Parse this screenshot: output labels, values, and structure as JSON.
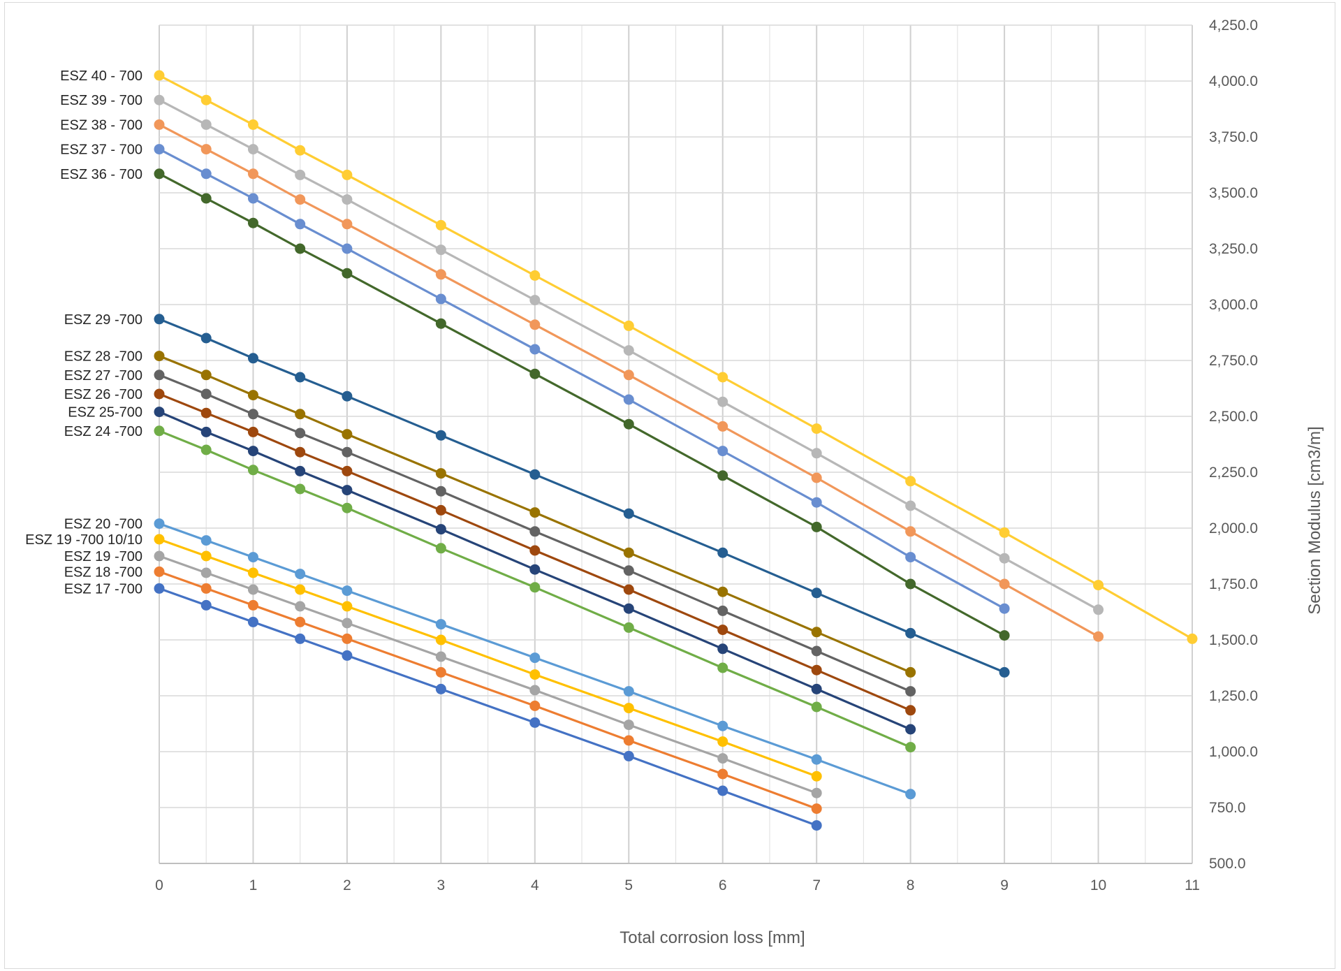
{
  "chart_data": {
    "type": "line",
    "title": "",
    "xlabel": "Total corrosion loss [mm]",
    "ylabel": "Section Modulus [cm3/m]",
    "xlim": [
      0,
      11
    ],
    "ylim": [
      500,
      4250
    ],
    "x_ticks": [
      "0",
      "1",
      "2",
      "3",
      "4",
      "5",
      "6",
      "7",
      "8",
      "9",
      "10",
      "11"
    ],
    "y_ticks": [
      "500.0",
      "750.0",
      "1,000.0",
      "1,250.0",
      "1,500.0",
      "1,750.0",
      "2,000.0",
      "2,250.0",
      "2,500.0",
      "2,750.0",
      "3,000.0",
      "3,250.0",
      "3,500.0",
      "3,750.0",
      "4,000.0",
      "4,250.0"
    ],
    "y_axis_side": "right",
    "grid": true,
    "legend": "series names printed at left edge beside first point",
    "series": [
      {
        "name": "ESZ 17 -700",
        "color": "#4472C4",
        "x": [
          0,
          0.5,
          1,
          1.5,
          2,
          3,
          4,
          5,
          6,
          7
        ],
        "y": [
          1730,
          1655,
          1580,
          1505,
          1430,
          1280,
          1130,
          980,
          825,
          670
        ]
      },
      {
        "name": "ESZ 18 -700",
        "color": "#ED7D31",
        "x": [
          0,
          0.5,
          1,
          1.5,
          2,
          3,
          4,
          5,
          6,
          7
        ],
        "y": [
          1805,
          1730,
          1655,
          1580,
          1505,
          1355,
          1205,
          1050,
          900,
          745
        ]
      },
      {
        "name": "ESZ 19 -700",
        "color": "#A5A5A5",
        "x": [
          0,
          0.5,
          1,
          1.5,
          2,
          3,
          4,
          5,
          6,
          7
        ],
        "y": [
          1875,
          1800,
          1725,
          1650,
          1575,
          1425,
          1275,
          1120,
          970,
          815
        ]
      },
      {
        "name": "ESZ 19 -700 10/10",
        "color": "#FFC000",
        "x": [
          0,
          0.5,
          1,
          1.5,
          2,
          3,
          4,
          5,
          6,
          7
        ],
        "y": [
          1950,
          1875,
          1800,
          1725,
          1650,
          1500,
          1345,
          1195,
          1045,
          890
        ]
      },
      {
        "name": "ESZ 20 -700",
        "color": "#5B9BD5",
        "x": [
          0,
          0.5,
          1,
          1.5,
          2,
          3,
          4,
          5,
          6,
          7,
          8
        ],
        "y": [
          2020,
          1945,
          1870,
          1795,
          1720,
          1570,
          1420,
          1270,
          1115,
          965,
          810
        ]
      },
      {
        "name": "ESZ 24 -700",
        "color": "#70AD47",
        "x": [
          0,
          0.5,
          1,
          1.5,
          2,
          3,
          4,
          5,
          6,
          7,
          8
        ],
        "y": [
          2435,
          2350,
          2260,
          2175,
          2090,
          1910,
          1735,
          1555,
          1375,
          1200,
          1020
        ]
      },
      {
        "name": "ESZ 25-700",
        "color": "#264478",
        "x": [
          0,
          0.5,
          1,
          1.5,
          2,
          3,
          4,
          5,
          6,
          7,
          8
        ],
        "y": [
          2520,
          2430,
          2345,
          2255,
          2170,
          1995,
          1815,
          1640,
          1460,
          1280,
          1100
        ]
      },
      {
        "name": "ESZ 26 -700",
        "color": "#9E480E",
        "x": [
          0,
          0.5,
          1,
          1.5,
          2,
          3,
          4,
          5,
          6,
          7,
          8
        ],
        "y": [
          2600,
          2515,
          2430,
          2340,
          2255,
          2080,
          1900,
          1725,
          1545,
          1365,
          1185
        ]
      },
      {
        "name": "ESZ 27 -700",
        "color": "#636363",
        "x": [
          0,
          0.5,
          1,
          1.5,
          2,
          3,
          4,
          5,
          6,
          7,
          8
        ],
        "y": [
          2685,
          2600,
          2510,
          2425,
          2340,
          2165,
          1985,
          1810,
          1630,
          1450,
          1270
        ]
      },
      {
        "name": "ESZ 28 -700",
        "color": "#997300",
        "x": [
          0,
          0.5,
          1,
          1.5,
          2,
          3,
          4,
          5,
          6,
          7,
          8
        ],
        "y": [
          2770,
          2685,
          2595,
          2510,
          2420,
          2245,
          2070,
          1890,
          1715,
          1535,
          1355
        ]
      },
      {
        "name": "ESZ 29 -700",
        "color": "#255E91",
        "x": [
          0,
          0.5,
          1,
          1.5,
          2,
          3,
          4,
          5,
          6,
          7,
          8,
          9
        ],
        "y": [
          2935,
          2850,
          2760,
          2675,
          2590,
          2415,
          2240,
          2065,
          1890,
          1710,
          1530,
          1355
        ]
      },
      {
        "name": "ESZ 36 - 700",
        "color": "#43682B",
        "x": [
          0,
          0.5,
          1,
          1.5,
          2,
          3,
          4,
          5,
          6,
          7,
          8,
          9
        ],
        "y": [
          3585,
          3475,
          3365,
          3250,
          3140,
          2915,
          2690,
          2465,
          2235,
          2005,
          1750,
          1520
        ]
      },
      {
        "name": "ESZ 37 - 700",
        "color": "#698ED0",
        "x": [
          0,
          0.5,
          1,
          1.5,
          2,
          3,
          4,
          5,
          6,
          7,
          8,
          9
        ],
        "y": [
          3695,
          3585,
          3475,
          3360,
          3250,
          3025,
          2800,
          2575,
          2345,
          2115,
          1870,
          1640
        ]
      },
      {
        "name": "ESZ 38 - 700",
        "color": "#F1975A",
        "x": [
          0,
          0.5,
          1,
          1.5,
          2,
          3,
          4,
          5,
          6,
          7,
          8,
          9,
          10
        ],
        "y": [
          3805,
          3695,
          3585,
          3470,
          3360,
          3135,
          2910,
          2685,
          2455,
          2225,
          1985,
          1750,
          1515
        ]
      },
      {
        "name": "ESZ 39 - 700",
        "color": "#B7B7B7",
        "x": [
          0,
          0.5,
          1,
          1.5,
          2,
          3,
          4,
          5,
          6,
          7,
          8,
          9,
          10
        ],
        "y": [
          3915,
          3805,
          3695,
          3580,
          3470,
          3245,
          3020,
          2795,
          2565,
          2335,
          2100,
          1865,
          1635
        ]
      },
      {
        "name": "ESZ 40 - 700",
        "color": "#FFCD33",
        "x": [
          0,
          0.5,
          1,
          1.5,
          2,
          3,
          4,
          5,
          6,
          7,
          8,
          9,
          10,
          11
        ],
        "y": [
          4025,
          3915,
          3805,
          3690,
          3580,
          3355,
          3130,
          2905,
          2675,
          2445,
          2210,
          1980,
          1745,
          1505
        ]
      }
    ]
  }
}
